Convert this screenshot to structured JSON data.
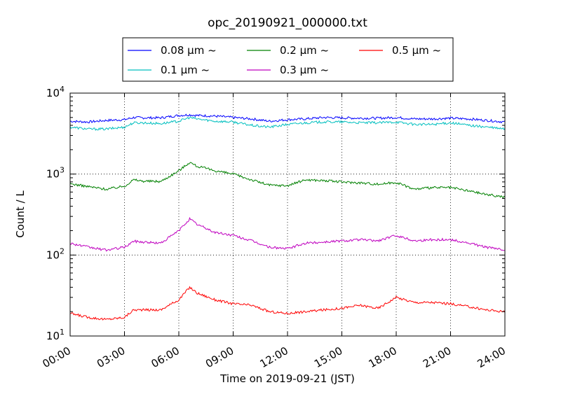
{
  "chart_data": {
    "type": "line",
    "title": "opc_20190921_000000.txt",
    "xlabel": "Time on 2019-09-21 (JST)",
    "ylabel": "Count / L",
    "x_unit": "hours",
    "xlim": [
      0,
      24
    ],
    "ylim": [
      10,
      10000
    ],
    "yscale": "log",
    "grid": true,
    "legend_position": "top-center (outside axes)",
    "x_ticks": [
      {
        "value": 0,
        "label": "00:00"
      },
      {
        "value": 3,
        "label": "03:00"
      },
      {
        "value": 6,
        "label": "06:00"
      },
      {
        "value": 9,
        "label": "09:00"
      },
      {
        "value": 12,
        "label": "12:00"
      },
      {
        "value": 15,
        "label": "15:00"
      },
      {
        "value": 18,
        "label": "18:00"
      },
      {
        "value": 21,
        "label": "21:00"
      },
      {
        "value": 24,
        "label": "24:00"
      }
    ],
    "y_ticks": [
      {
        "value": 10,
        "base": "10",
        "exp": "1"
      },
      {
        "value": 100,
        "base": "10",
        "exp": "2"
      },
      {
        "value": 1000,
        "base": "10",
        "exp": "3"
      },
      {
        "value": 10000,
        "base": "10",
        "exp": "4"
      }
    ],
    "x": [
      0,
      1,
      2,
      3,
      3.5,
      4,
      5,
      6,
      6.6,
      7,
      8,
      9,
      10,
      11,
      12,
      13,
      14,
      15,
      16,
      17,
      18,
      19,
      20,
      21,
      22,
      23,
      24
    ],
    "series": [
      {
        "name": "0.08 μm ~",
        "color": "#0000ff",
        "values": [
          4500,
          4400,
          4600,
          4700,
          5000,
          4950,
          4950,
          5300,
          5400,
          5300,
          5200,
          5000,
          4800,
          4500,
          4700,
          4800,
          5000,
          4950,
          4900,
          4900,
          5000,
          4800,
          4800,
          4900,
          4800,
          4600,
          4400
        ]
      },
      {
        "name": "0.1 μm ~",
        "color": "#00bfbf",
        "values": [
          3800,
          3600,
          3600,
          3800,
          4300,
          4300,
          4200,
          4500,
          5000,
          4800,
          4500,
          4400,
          4000,
          3800,
          4100,
          4300,
          4400,
          4400,
          4300,
          4300,
          4400,
          4100,
          4100,
          4300,
          4000,
          3800,
          3600
        ]
      },
      {
        "name": "0.2 μm ~",
        "color": "#008000",
        "values": [
          760,
          700,
          650,
          710,
          850,
          820,
          810,
          1100,
          1400,
          1250,
          1100,
          1000,
          850,
          730,
          720,
          850,
          830,
          800,
          780,
          750,
          790,
          650,
          680,
          680,
          620,
          560,
          520
        ]
      },
      {
        "name": "0.3 μm ~",
        "color": "#bf00bf",
        "values": [
          140,
          125,
          115,
          125,
          148,
          145,
          140,
          200,
          280,
          240,
          190,
          175,
          150,
          125,
          120,
          140,
          145,
          150,
          155,
          150,
          175,
          150,
          155,
          155,
          140,
          125,
          115
        ]
      },
      {
        "name": "0.5 μm ~",
        "color": "#ff0000",
        "values": [
          19,
          17,
          16,
          17,
          21,
          21,
          21,
          28,
          40,
          34,
          28,
          25,
          24,
          20,
          19,
          20,
          21,
          22,
          24,
          22,
          30,
          26,
          26,
          25,
          23,
          21,
          20
        ]
      }
    ]
  }
}
